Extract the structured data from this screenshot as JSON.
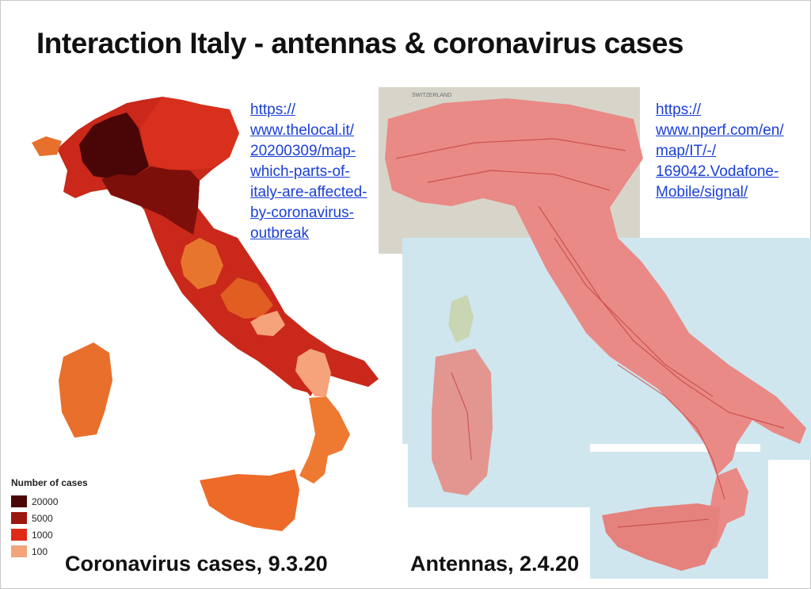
{
  "title": "Interaction Italy - antennas & coronavirus cases",
  "left_source_link": [
    "https://",
    "www.thelocal.it/",
    "20200309/map-",
    "which-parts-of-",
    "italy-are-affected-",
    "by-coronavirus-",
    "outbreak"
  ],
  "right_source_link": [
    "https://",
    "www.nperf.com/en/",
    "map/IT/-/",
    "169042.Vodafone-",
    "Mobile/signal/"
  ],
  "legend": {
    "title": "Number of cases",
    "items": [
      {
        "label": "20000",
        "color": "#4a0606"
      },
      {
        "label": "5000",
        "color": "#9c170f"
      },
      {
        "label": "1000",
        "color": "#e02a16"
      },
      {
        "label": "100",
        "color": "#f4a47a"
      }
    ]
  },
  "captions": {
    "left": "Coronavirus cases, 9.3.20",
    "right": "Antennas, 2.4.20"
  },
  "map_labels": [
    "SWITZERLAND"
  ]
}
